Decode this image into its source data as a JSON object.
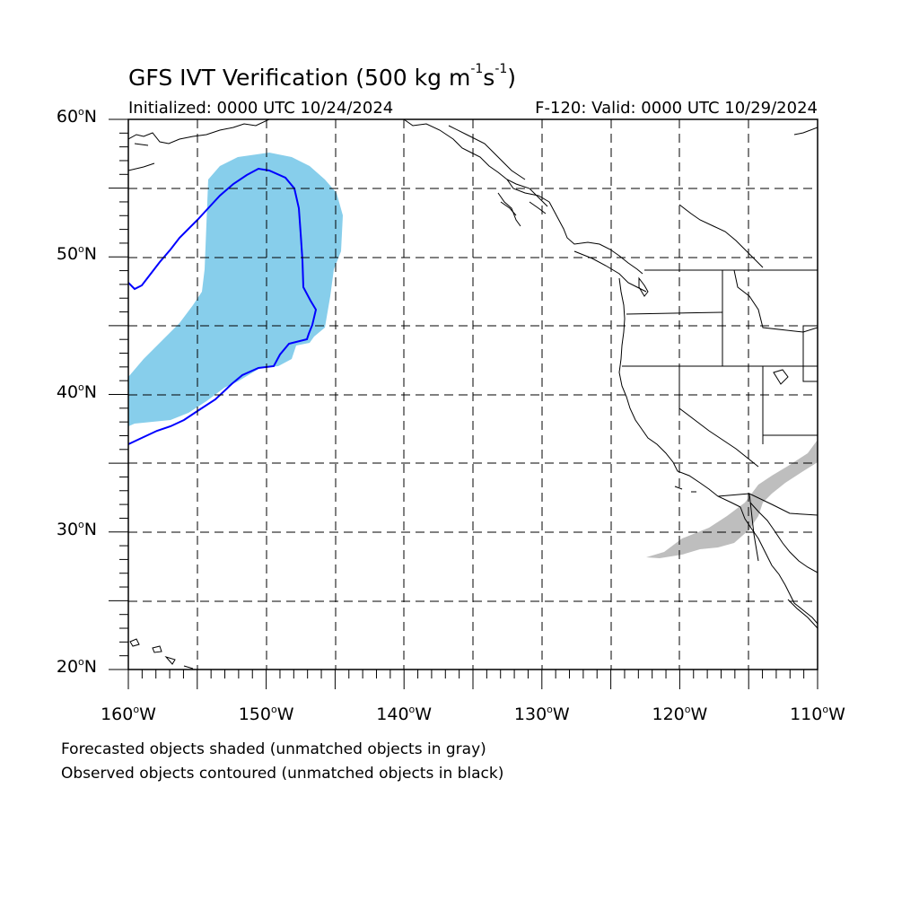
{
  "title": {
    "main": "GFS IVT Verification (500 kg m",
    "exp1": "-1",
    "mid": "s",
    "exp2": "-1",
    "end": ")"
  },
  "initialized": "Initialized: 0000 UTC 10/24/2024",
  "valid": "F-120: Valid: 0000 UTC 10/29/2024",
  "map": {
    "lon_range": [
      -160,
      -110
    ],
    "lat_range": [
      20,
      60
    ],
    "grid_lines": "dashed every 5 degrees",
    "lat_labels": [
      {
        "lat": 60,
        "label": "60",
        "suffix": "N"
      },
      {
        "lat": 50,
        "label": "50",
        "suffix": "N"
      },
      {
        "lat": 40,
        "label": "40",
        "suffix": "N"
      },
      {
        "lat": 30,
        "label": "30",
        "suffix": "N"
      },
      {
        "lat": 20,
        "label": "20",
        "suffix": "N"
      }
    ],
    "lon_labels": [
      {
        "lon": -160,
        "label": "160",
        "suffix": "W"
      },
      {
        "lon": -150,
        "label": "150",
        "suffix": "W"
      },
      {
        "lon": -140,
        "label": "140",
        "suffix": "W"
      },
      {
        "lon": -130,
        "label": "130",
        "suffix": "W"
      },
      {
        "lon": -120,
        "label": "120",
        "suffix": "W"
      },
      {
        "lon": -110,
        "label": "110",
        "suffix": "W"
      }
    ],
    "colors": {
      "matched_forecast_fill": "#87ceeb",
      "unmatched_forecast_fill": "#bebebe",
      "matched_observed_contour": "#0000ff",
      "coastline": "#000000"
    }
  },
  "legend": {
    "line1": "Forecasted objects shaded (unmatched objects in gray)",
    "line2": "Observed objects contoured (unmatched objects in black)"
  }
}
